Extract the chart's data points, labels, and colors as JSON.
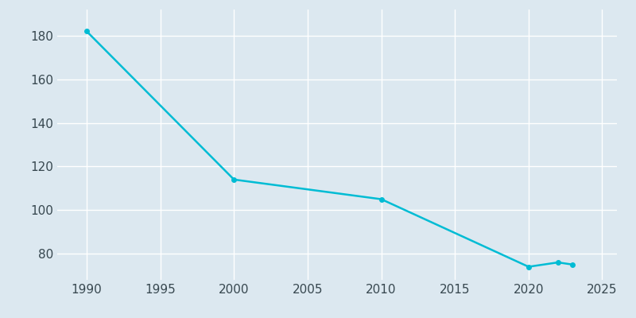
{
  "years": [
    1990,
    2000,
    2010,
    2020,
    2022,
    2023
  ],
  "population": [
    182,
    114,
    105,
    74,
    76,
    75
  ],
  "line_color": "#00bcd4",
  "marker_color": "#00bcd4",
  "background_color": "#dce8f0",
  "plot_bg_color": "#dce8f0",
  "grid_color": "#ffffff",
  "tick_label_color": "#37474f",
  "xlim": [
    1988,
    2026
  ],
  "ylim": [
    68,
    192
  ],
  "xticks": [
    1990,
    1995,
    2000,
    2005,
    2010,
    2015,
    2020,
    2025
  ],
  "yticks": [
    80,
    100,
    120,
    140,
    160,
    180
  ],
  "linewidth": 1.8,
  "markersize": 4,
  "tick_fontsize": 11
}
